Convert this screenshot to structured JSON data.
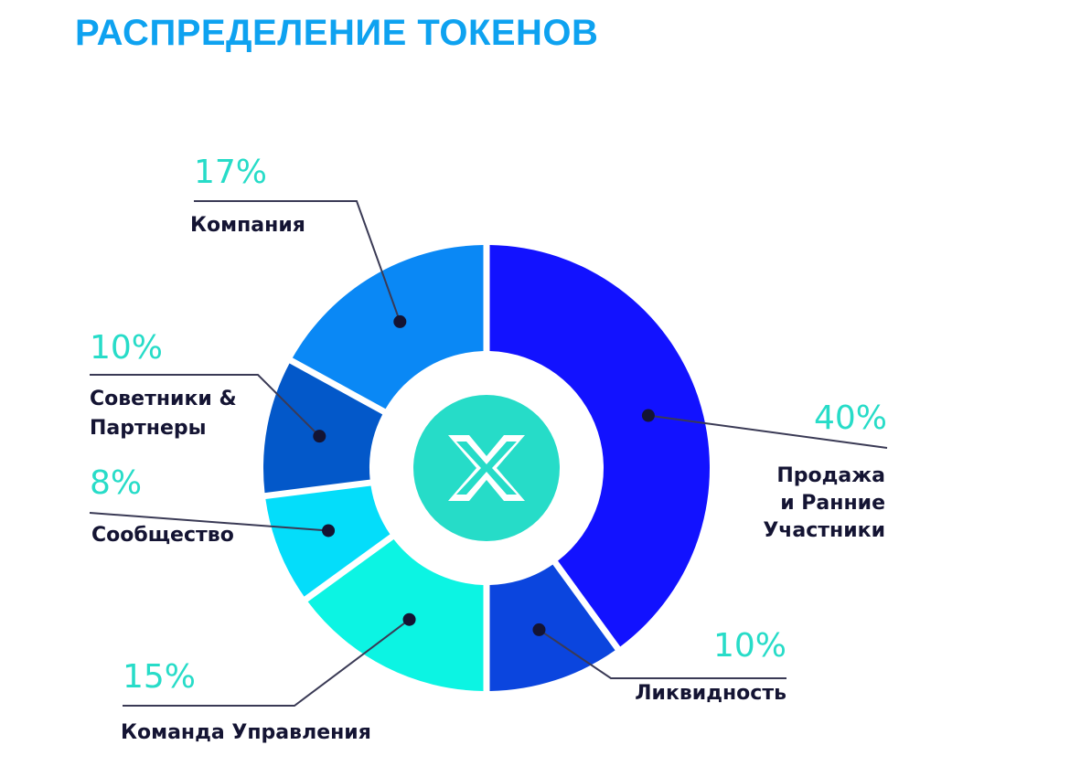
{
  "title": "РАСПРЕДЕЛЕНИЕ ТОКЕНОВ",
  "chart_data": {
    "type": "pie",
    "donut": true,
    "center_icon": "x-logo-icon",
    "slices": [
      {
        "key": "sale",
        "value": 40,
        "percent_label": "40%",
        "label_lines": [
          "Продажа",
          "и Ранние",
          "Участники"
        ],
        "color": "#1212ff"
      },
      {
        "key": "liquidity",
        "value": 10,
        "percent_label": "10%",
        "label_lines": [
          "Ликвидность"
        ],
        "color": "#0b45de"
      },
      {
        "key": "team",
        "value": 15,
        "percent_label": "15%",
        "label_lines": [
          "Команда Управления"
        ],
        "color": "#0cf4e3"
      },
      {
        "key": "community",
        "value": 8,
        "percent_label": "8%",
        "label_lines": [
          "Сообщество"
        ],
        "color": "#04ddfa"
      },
      {
        "key": "advisors",
        "value": 10,
        "percent_label": "10%",
        "label_lines": [
          "Советники &",
          "Партнеры"
        ],
        "color": "#0358c9"
      },
      {
        "key": "company",
        "value": 17,
        "percent_label": "17%",
        "label_lines": [
          "Компания"
        ],
        "color": "#0a88f5"
      }
    ],
    "colors": {
      "percent_text": "#27dcc8",
      "label_text": "#141433",
      "leader_line": "#3a3a55",
      "center_circle": "#26dcc8",
      "title": "#0ea2f0"
    }
  }
}
